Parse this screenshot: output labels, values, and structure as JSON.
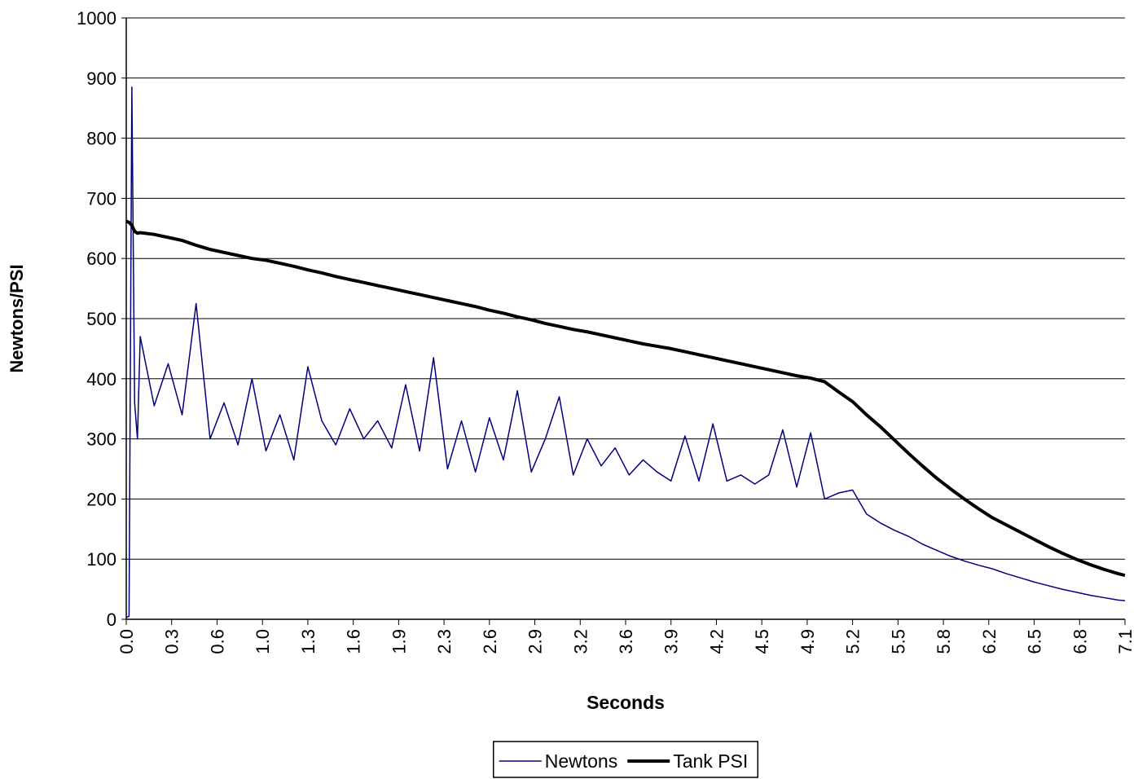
{
  "chart_data": {
    "type": "line",
    "y_label": "Newtons/PSI",
    "x_label": "Seconds",
    "x": [
      0,
      0.02,
      0.04,
      0.06,
      0.08,
      0.1,
      0.2,
      0.3,
      0.4,
      0.5,
      0.6,
      0.7,
      0.8,
      0.9,
      1.0,
      1.1,
      1.2,
      1.3,
      1.4,
      1.5,
      1.6,
      1.7,
      1.8,
      1.9,
      2.0,
      2.1,
      2.2,
      2.3,
      2.4,
      2.5,
      2.6,
      2.7,
      2.8,
      2.9,
      3.0,
      3.1,
      3.2,
      3.3,
      3.4,
      3.5,
      3.6,
      3.7,
      3.8,
      3.9,
      4.0,
      4.1,
      4.2,
      4.3,
      4.4,
      4.5,
      4.6,
      4.7,
      4.8,
      4.9,
      5.0,
      5.1,
      5.2,
      5.3,
      5.4,
      5.5,
      5.6,
      5.7,
      5.8,
      5.9,
      6.0,
      6.1,
      6.2,
      6.3,
      6.4,
      6.5,
      6.6,
      6.7,
      6.8,
      6.9,
      7.0,
      7.1,
      7.15
    ],
    "series": [
      {
        "name": "Newtons",
        "color": "#000080",
        "width": 1.5,
        "values": [
          3,
          5,
          885,
          360,
          300,
          470,
          355,
          425,
          340,
          525,
          300,
          360,
          290,
          400,
          280,
          340,
          265,
          420,
          330,
          290,
          350,
          300,
          330,
          285,
          390,
          280,
          435,
          250,
          330,
          245,
          335,
          265,
          380,
          245,
          300,
          370,
          240,
          300,
          255,
          285,
          240,
          265,
          245,
          230,
          305,
          230,
          325,
          230,
          240,
          225,
          240,
          315,
          220,
          310,
          200,
          210,
          215,
          175,
          160,
          148,
          138,
          125,
          115,
          105,
          97,
          90,
          84,
          76,
          69,
          62,
          56,
          50,
          45,
          40,
          36,
          32,
          31
        ]
      },
      {
        "name": "Tank PSI",
        "color": "#000000",
        "width": 4,
        "values": [
          662,
          660,
          655,
          645,
          642,
          643,
          640,
          635,
          630,
          622,
          615,
          610,
          605,
          600,
          597,
          592,
          587,
          581,
          576,
          570,
          565,
          560,
          555,
          550,
          545,
          540,
          535,
          530,
          525,
          520,
          514,
          509,
          503,
          498,
          492,
          487,
          482,
          478,
          473,
          468,
          463,
          458,
          454,
          450,
          445,
          440,
          435,
          430,
          425,
          420,
          415,
          410,
          405,
          401,
          395,
          378,
          362,
          340,
          320,
          298,
          276,
          255,
          235,
          217,
          200,
          184,
          169,
          157,
          145,
          133,
          121,
          110,
          100,
          91,
          83,
          76,
          73
        ]
      }
    ],
    "xlim": [
      0,
      7.15
    ],
    "xticks": [
      {
        "value": 0,
        "label": "0.0"
      },
      {
        "value": 0.325,
        "label": "0.3"
      },
      {
        "value": 0.65,
        "label": "0.6"
      },
      {
        "value": 0.975,
        "label": "1.0"
      },
      1.3,
      {
        "value": 1.625,
        "label": "1.6"
      },
      {
        "value": 1.95,
        "label": "1.9"
      },
      {
        "value": 2.275,
        "label": "2.3"
      },
      2.6,
      {
        "value": 2.925,
        "label": "2.9"
      },
      {
        "value": 3.25,
        "label": "3.2"
      },
      {
        "value": 3.575,
        "label": "3.6"
      },
      3.9,
      {
        "value": 4.225,
        "label": "4.2"
      },
      {
        "value": 4.55,
        "label": "4.5"
      },
      {
        "value": 4.875,
        "label": "4.9"
      },
      5.2,
      {
        "value": 5.525,
        "label": "5.5"
      },
      {
        "value": 5.85,
        "label": "5.8"
      },
      {
        "value": 6.175,
        "label": "6.2"
      },
      6.5,
      {
        "value": 6.825,
        "label": "6.8"
      },
      {
        "value": 7.15,
        "label": "7.1"
      }
    ],
    "ylim": [
      0,
      1000
    ],
    "yticks": [
      0,
      100,
      200,
      300,
      400,
      500,
      600,
      700,
      800,
      900,
      1000
    ],
    "grid": true,
    "legend": "bottom"
  }
}
